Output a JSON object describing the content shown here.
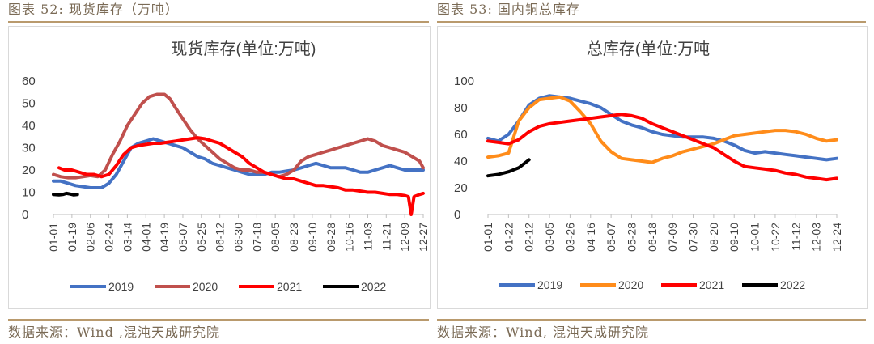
{
  "left": {
    "caption": "图表 52: 现货库存（万吨）",
    "source": "数据来源：Wind ,混沌天成研究院"
  },
  "right": {
    "caption": "图表 53: 国内铜总库存",
    "source": "数据来源：Wind, 混沌天成研究院"
  },
  "colors": {
    "2019": "#4472c4",
    "2020": "#c0504d",
    "2021": "#ff0000",
    "2022": "#000000"
  },
  "chart_data": [
    {
      "type": "line",
      "title": "现货库存(单位:万吨)",
      "xlabel": "",
      "ylabel": "",
      "ylim": [
        0,
        60
      ],
      "yticks": [
        "0",
        "10",
        "20",
        "30",
        "40",
        "50",
        "60"
      ],
      "xticks": [
        "01-01",
        "01-19",
        "02-06",
        "02-24",
        "03-14",
        "04-01",
        "04-19",
        "05-07",
        "05-25",
        "06-12",
        "06-30",
        "07-18",
        "08-05",
        "08-23",
        "09-10",
        "09-28",
        "10-16",
        "11-03",
        "11-21",
        "12-09",
        "12-27"
      ],
      "legend_position": "bottom",
      "series": [
        {
          "name": "2019",
          "color": "#4472c4",
          "x": [
            0,
            0.4,
            0.8,
            1.2,
            1.6,
            2.0,
            2.2,
            2.6,
            3.0,
            3.4,
            3.8,
            4.2,
            4.6,
            5.0,
            5.4,
            5.8,
            6.2,
            6.6,
            7.0,
            7.4,
            7.8,
            8.2,
            8.6,
            9.0,
            9.4,
            9.8,
            10.2,
            10.6,
            11.0,
            11.4,
            11.8,
            12.2,
            12.6,
            13.0,
            13.4,
            13.8,
            14.2,
            14.6,
            15.0,
            15.4,
            15.8,
            16.2,
            16.6,
            17.0,
            17.4,
            17.8,
            18.2,
            18.6,
            19.0,
            19.4,
            19.8,
            20.0
          ],
          "y": [
            15,
            15,
            14,
            13,
            12.5,
            12,
            12,
            12,
            14,
            18,
            24,
            30,
            32,
            33,
            34,
            33,
            32,
            31,
            30,
            28,
            26,
            25,
            23,
            22,
            21,
            20,
            19,
            18,
            18,
            18,
            19,
            19,
            19.5,
            20,
            21,
            22,
            23,
            22,
            21,
            21,
            21,
            20,
            19,
            19,
            20,
            21,
            22,
            21,
            20,
            20,
            20,
            20
          ]
        },
        {
          "name": "2020",
          "color": "#c0504d",
          "x": [
            0,
            0.4,
            0.8,
            1.2,
            1.6,
            2.0,
            2.4,
            2.8,
            3.2,
            3.6,
            4.0,
            4.4,
            4.8,
            5.2,
            5.6,
            6.0,
            6.3,
            6.6,
            7.0,
            7.4,
            7.8,
            8.2,
            8.6,
            9.0,
            9.4,
            9.8,
            10.2,
            10.6,
            11.0,
            11.4,
            11.8,
            12.2,
            12.6,
            13.0,
            13.4,
            13.8,
            14.2,
            14.6,
            15.0,
            15.4,
            15.8,
            16.2,
            16.6,
            17.0,
            17.4,
            17.8,
            18.2,
            18.6,
            19.0,
            19.4,
            19.8,
            20.0
          ],
          "y": [
            18,
            17,
            16.5,
            16.5,
            17,
            17.5,
            17,
            20,
            27,
            33,
            40,
            45,
            50,
            53,
            54,
            54,
            52,
            48,
            43,
            38,
            34,
            31,
            28,
            25,
            23,
            21,
            20,
            20,
            19,
            19,
            18,
            17,
            18,
            20,
            24,
            26,
            27,
            28,
            29,
            30,
            31,
            32,
            33,
            34,
            33,
            31,
            30,
            29,
            28,
            26,
            24,
            21
          ]
        },
        {
          "name": "2021",
          "color": "#ff0000",
          "x": [
            0.3,
            0.6,
            1.0,
            1.4,
            1.8,
            2.2,
            2.6,
            3.0,
            3.4,
            3.8,
            4.2,
            4.6,
            5.0,
            5.4,
            5.8,
            6.2,
            6.6,
            7.0,
            7.4,
            7.8,
            8.2,
            8.6,
            9.0,
            9.4,
            9.8,
            10.2,
            10.6,
            11.0,
            11.4,
            11.8,
            12.2,
            12.6,
            13.0,
            13.4,
            13.8,
            14.2,
            14.6,
            15.0,
            15.4,
            15.8,
            16.2,
            16.6,
            17.0,
            17.4,
            17.8,
            18.2,
            18.6,
            19.0,
            19.2,
            19.35,
            19.5,
            19.8,
            20.0
          ],
          "y": [
            21,
            20,
            20,
            19,
            18,
            18,
            17,
            18,
            22,
            27,
            30,
            31,
            31.5,
            32,
            32,
            32.5,
            33,
            33.5,
            34,
            34.5,
            34,
            33,
            32,
            30,
            28,
            26,
            23,
            21,
            19,
            18,
            17,
            16,
            16,
            15,
            14,
            13,
            13,
            12.5,
            12,
            11,
            11,
            10.5,
            10,
            10,
            9.5,
            9,
            9,
            8.5,
            8,
            0,
            8,
            9,
            9.5
          ]
        },
        {
          "name": "2022",
          "color": "#000000",
          "x": [
            0,
            0.3,
            0.5,
            0.7,
            0.9,
            1.1,
            1.3
          ],
          "y": [
            9,
            8.8,
            9,
            9.5,
            9.2,
            8.8,
            9
          ]
        }
      ]
    },
    {
      "type": "line",
      "title": "总库存(单位:万吨",
      "xlabel": "",
      "ylabel": "",
      "ylim": [
        0,
        100
      ],
      "yticks": [
        "0",
        "20",
        "40",
        "60",
        "80",
        "100"
      ],
      "xticks": [
        "01-01",
        "01-22",
        "02-12",
        "03-05",
        "03-26",
        "04-16",
        "05-07",
        "05-28",
        "06-18",
        "07-09",
        "07-30",
        "08-20",
        "09-10",
        "10-01",
        "10-22",
        "11-12",
        "12-03",
        "12-24"
      ],
      "legend_position": "bottom",
      "series": [
        {
          "name": "2019",
          "color": "#4472c4",
          "x": [
            0,
            0.5,
            1.0,
            1.5,
            2.0,
            2.5,
            3.0,
            3.5,
            4.0,
            4.5,
            5.0,
            5.5,
            6.0,
            6.5,
            7.0,
            7.5,
            8.0,
            8.5,
            9.0,
            9.5,
            10.0,
            10.5,
            11.0,
            11.5,
            12.0,
            12.5,
            13.0,
            13.5,
            14.0,
            14.5,
            15.0,
            15.5,
            16.0,
            16.5,
            17.0
          ],
          "y": [
            57,
            55,
            60,
            70,
            82,
            87,
            89,
            88,
            87,
            85,
            83,
            80,
            75,
            70,
            67,
            65,
            62,
            60,
            59,
            58,
            58,
            58,
            57,
            55,
            52,
            48,
            46,
            47,
            46,
            45,
            44,
            43,
            42,
            41,
            42
          ]
        },
        {
          "name": "2020",
          "color": "#ff8c1a",
          "x": [
            0,
            0.5,
            1.0,
            1.5,
            2.0,
            2.5,
            3.0,
            3.5,
            4.0,
            4.5,
            5.0,
            5.5,
            6.0,
            6.5,
            7.0,
            7.5,
            8.0,
            8.5,
            9.0,
            9.5,
            10.0,
            10.5,
            11.0,
            11.5,
            12.0,
            12.5,
            13.0,
            13.5,
            14.0,
            14.5,
            15.0,
            15.5,
            16.0,
            16.5,
            17.0
          ],
          "y": [
            43,
            44,
            46,
            70,
            80,
            86,
            87,
            88,
            85,
            77,
            68,
            55,
            47,
            42,
            41,
            40,
            39,
            42,
            44,
            47,
            49,
            51,
            53,
            56,
            59,
            60,
            61,
            62,
            63,
            63,
            62,
            60,
            57,
            55,
            56
          ]
        },
        {
          "name": "2021",
          "color": "#ff0000",
          "x": [
            0,
            0.5,
            1.0,
            1.5,
            2.0,
            2.5,
            3.0,
            3.5,
            4.0,
            4.5,
            5.0,
            5.5,
            6.0,
            6.5,
            7.0,
            7.5,
            8.0,
            8.5,
            9.0,
            9.5,
            10.0,
            10.5,
            11.0,
            11.5,
            12.0,
            12.5,
            13.0,
            13.5,
            14.0,
            14.5,
            15.0,
            15.5,
            16.0,
            16.5,
            17.0
          ],
          "y": [
            55,
            54,
            53,
            56,
            62,
            66,
            68,
            69,
            70,
            71,
            72,
            73,
            74,
            75,
            74,
            72,
            68,
            65,
            62,
            59,
            56,
            53,
            50,
            45,
            40,
            36,
            35,
            34,
            33,
            31,
            30,
            28,
            27,
            26,
            27
          ]
        },
        {
          "name": "2022",
          "color": "#000000",
          "x": [
            0,
            0.5,
            1.0,
            1.5,
            2.0
          ],
          "y": [
            29,
            30,
            32,
            35,
            41
          ]
        }
      ]
    }
  ]
}
